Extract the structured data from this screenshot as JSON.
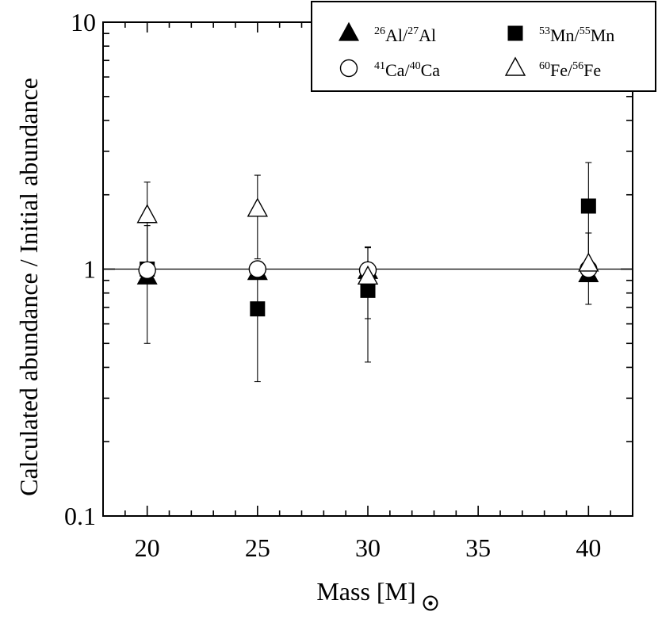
{
  "chart_data": {
    "type": "scatter",
    "title": "",
    "xlabel": "Mass [M⊙]",
    "xlabel_main": "Mass [M",
    "xlabel_close": "]",
    "ylabel": "Calculated abundance / Initial abundance",
    "xlim": [
      18,
      42
    ],
    "ylim": [
      0.1,
      10
    ],
    "yscale": "log",
    "x_ticks": [
      20,
      25,
      30,
      35,
      40
    ],
    "x_tick_labels": [
      "20",
      "25",
      "30",
      "35",
      "40"
    ],
    "y_ticks": [
      0.1,
      1,
      10
    ],
    "y_tick_labels": [
      "0.1",
      "1",
      "10"
    ],
    "reference_line": 1,
    "legend_position": "top-right",
    "series": [
      {
        "name": "26Al/27Al",
        "marker": "filled-triangle",
        "legend": {
          "sup1": "26",
          "base1": "Al/",
          "sup2": "27",
          "base2": "Al"
        },
        "points": [
          {
            "x": 20,
            "y": 0.93
          },
          {
            "x": 25,
            "y": 0.97
          },
          {
            "x": 30,
            "y": 0.98
          },
          {
            "x": 40,
            "y": 0.95
          }
        ]
      },
      {
        "name": "53Mn/55Mn",
        "marker": "filled-square",
        "legend": {
          "sup1": "53",
          "base1": "Mn/",
          "sup2": "55",
          "base2": "Mn"
        },
        "points": [
          {
            "x": 20,
            "y": 1.0,
            "ylo": 0.5,
            "yhi": 1.5
          },
          {
            "x": 25,
            "y": 0.69,
            "ylo": 0.35,
            "yhi": 1.05
          },
          {
            "x": 30,
            "y": 0.82,
            "ylo": 0.42,
            "yhi": 1.22
          },
          {
            "x": 40,
            "y": 1.8,
            "ylo": 0.9,
            "yhi": 2.7
          }
        ]
      },
      {
        "name": "41Ca/40Ca",
        "marker": "open-circle",
        "legend": {
          "sup1": "41",
          "base1": "Ca/",
          "sup2": "40",
          "base2": "Ca"
        },
        "points": [
          {
            "x": 20,
            "y": 0.99,
            "ylo": 0.93,
            "yhi": 1.05
          },
          {
            "x": 25,
            "y": 1.0,
            "ylo": 0.93,
            "yhi": 1.07
          },
          {
            "x": 30,
            "y": 0.99,
            "ylo": 0.92,
            "yhi": 1.06
          },
          {
            "x": 40,
            "y": 1.0
          }
        ]
      },
      {
        "name": "60Fe/56Fe",
        "marker": "open-triangle",
        "legend": {
          "sup1": "60",
          "base1": "Fe/",
          "sup2": "56",
          "base2": "Fe"
        },
        "points": [
          {
            "x": 20,
            "y": 1.65,
            "ylo": 1.05,
            "yhi": 2.25
          },
          {
            "x": 25,
            "y": 1.75,
            "ylo": 1.1,
            "yhi": 2.4
          },
          {
            "x": 30,
            "y": 0.93,
            "ylo": 0.63,
            "yhi": 1.23
          },
          {
            "x": 40,
            "y": 1.05,
            "ylo": 0.72,
            "yhi": 1.4
          }
        ]
      }
    ]
  }
}
